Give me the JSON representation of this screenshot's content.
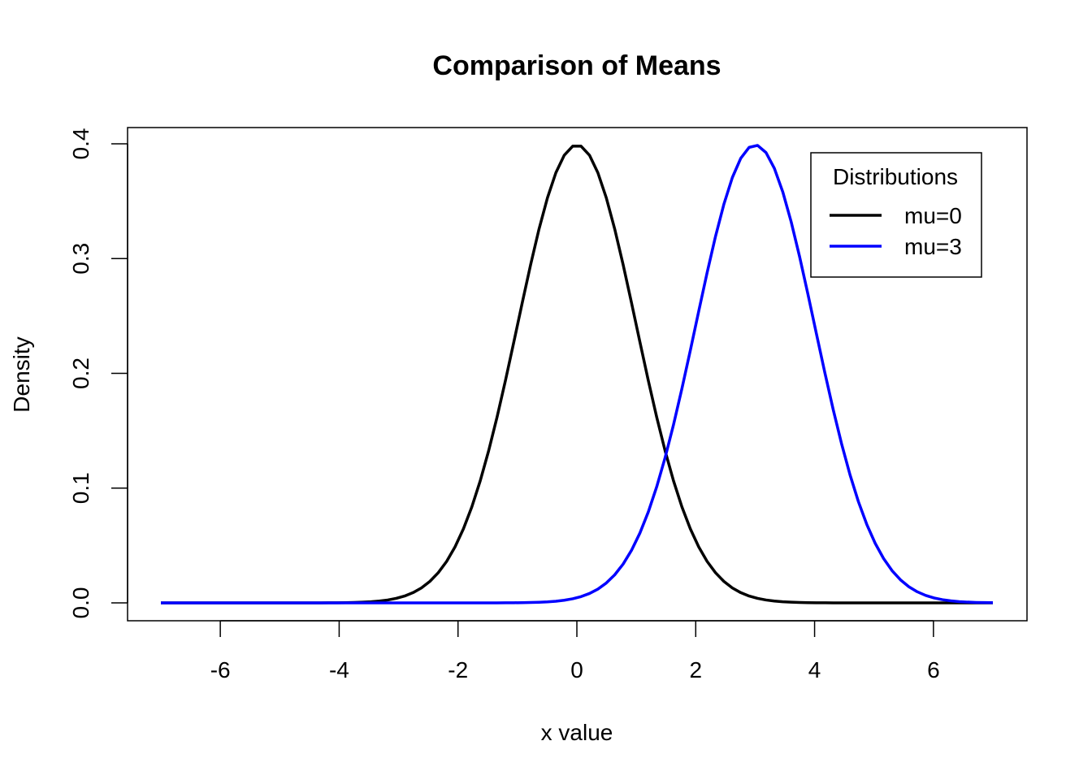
{
  "chart_data": {
    "type": "line",
    "title": "Comparison of Means",
    "xlabel": "x value",
    "ylabel": "Density",
    "xlim": [
      -7,
      7
    ],
    "ylim": [
      0,
      0.4
    ],
    "x_ticks": [
      -6,
      -4,
      -2,
      0,
      2,
      4,
      6
    ],
    "x_tick_labels": [
      "-6",
      "-4",
      "-2",
      "0",
      "2",
      "4",
      "6"
    ],
    "y_ticks": [
      0,
      0.1,
      0.2,
      0.3,
      0.4
    ],
    "y_tick_labels": [
      "0.0",
      "0.1",
      "0.2",
      "0.3",
      "0.4"
    ],
    "grid": false,
    "legend": {
      "title": "Distributions",
      "position": "top-right",
      "entries": [
        "mu=0",
        "mu=3"
      ]
    },
    "series": [
      {
        "name": "mu=0",
        "color": "#000000",
        "distribution": "normal",
        "mean": 0,
        "sd": 1,
        "x_range": [
          -7,
          7
        ]
      },
      {
        "name": "mu=3",
        "color": "#0000ff",
        "distribution": "normal",
        "mean": 3,
        "sd": 1,
        "x_range": [
          -7,
          7
        ]
      }
    ]
  }
}
